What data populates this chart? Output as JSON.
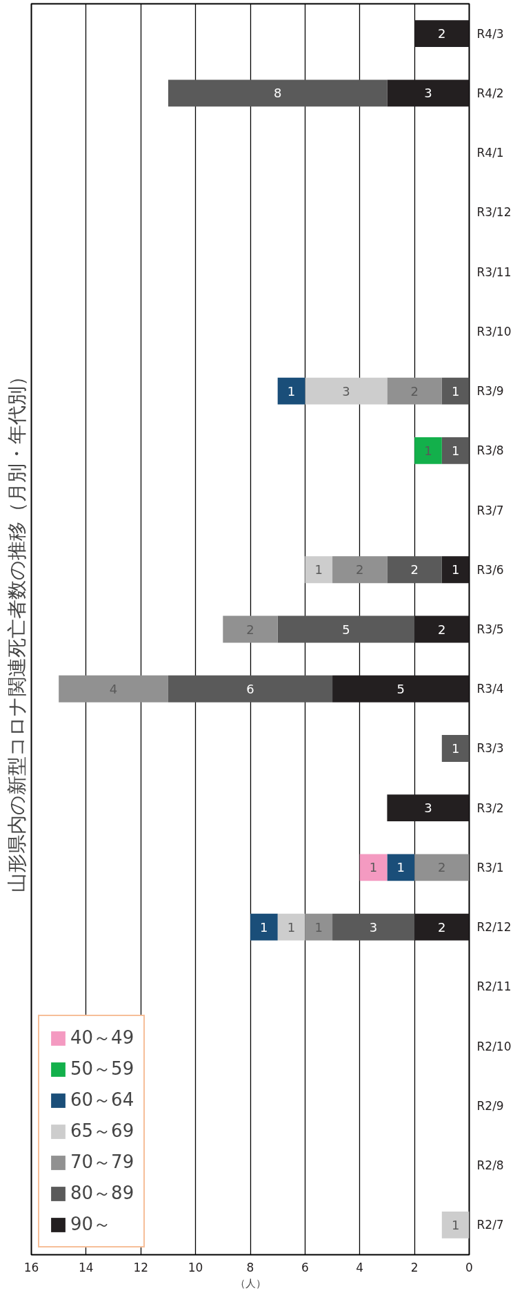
{
  "chart_data": {
    "type": "bar",
    "orientation": "horizontal",
    "stacked": true,
    "title": "山形県内の新型コロナ関連死亡者数の推移（月別・年代別）",
    "xlabel": "（人）",
    "categories": [
      "R4/3",
      "R4/2",
      "R4/1",
      "R3/12",
      "R3/11",
      "R3/10",
      "R3/9",
      "R3/8",
      "R3/7",
      "R3/6",
      "R3/5",
      "R3/4",
      "R3/3",
      "R3/2",
      "R3/1",
      "R2/12",
      "R2/11",
      "R2/10",
      "R2/9",
      "R2/8",
      "R2/7"
    ],
    "series": [
      {
        "name": "90～",
        "color": "#231f20",
        "values": [
          2,
          3,
          null,
          null,
          null,
          null,
          null,
          null,
          null,
          1,
          2,
          5,
          null,
          3,
          null,
          2,
          null,
          null,
          null,
          null,
          null
        ]
      },
      {
        "name": "80～89",
        "color": "#5a5a5a",
        "values": [
          null,
          8,
          null,
          null,
          null,
          null,
          1,
          1,
          null,
          2,
          5,
          6,
          1,
          null,
          null,
          3,
          null,
          null,
          null,
          null,
          null
        ]
      },
      {
        "name": "70～79",
        "color": "#919191",
        "values": [
          null,
          null,
          null,
          null,
          null,
          null,
          2,
          null,
          null,
          2,
          2,
          4,
          null,
          null,
          2,
          1,
          null,
          null,
          null,
          null,
          null
        ]
      },
      {
        "name": "65～69",
        "color": "#cdcdcd",
        "values": [
          null,
          null,
          null,
          null,
          null,
          null,
          3,
          null,
          null,
          1,
          null,
          null,
          null,
          null,
          null,
          1,
          null,
          null,
          null,
          null,
          1
        ]
      },
      {
        "name": "60～64",
        "color": "#1a4e79",
        "values": [
          null,
          null,
          null,
          null,
          null,
          null,
          1,
          null,
          null,
          null,
          null,
          null,
          null,
          null,
          1,
          1,
          null,
          null,
          null,
          null,
          null
        ]
      },
      {
        "name": "50～59",
        "color": "#13b04b",
        "values": [
          null,
          null,
          null,
          null,
          null,
          null,
          null,
          1,
          null,
          null,
          null,
          null,
          null,
          null,
          null,
          null,
          null,
          null,
          null,
          null,
          null
        ]
      },
      {
        "name": "40～49",
        "color": "#f49ac1",
        "values": [
          null,
          null,
          null,
          null,
          null,
          null,
          null,
          null,
          null,
          null,
          null,
          null,
          null,
          null,
          1,
          null,
          null,
          null,
          null,
          null,
          null
        ]
      }
    ],
    "xlim": [
      16,
      0
    ],
    "xticks": [
      0,
      2,
      4,
      6,
      8,
      10,
      12,
      14,
      16
    ],
    "grid": "x",
    "legend": "bottom left",
    "data_labels": true
  }
}
